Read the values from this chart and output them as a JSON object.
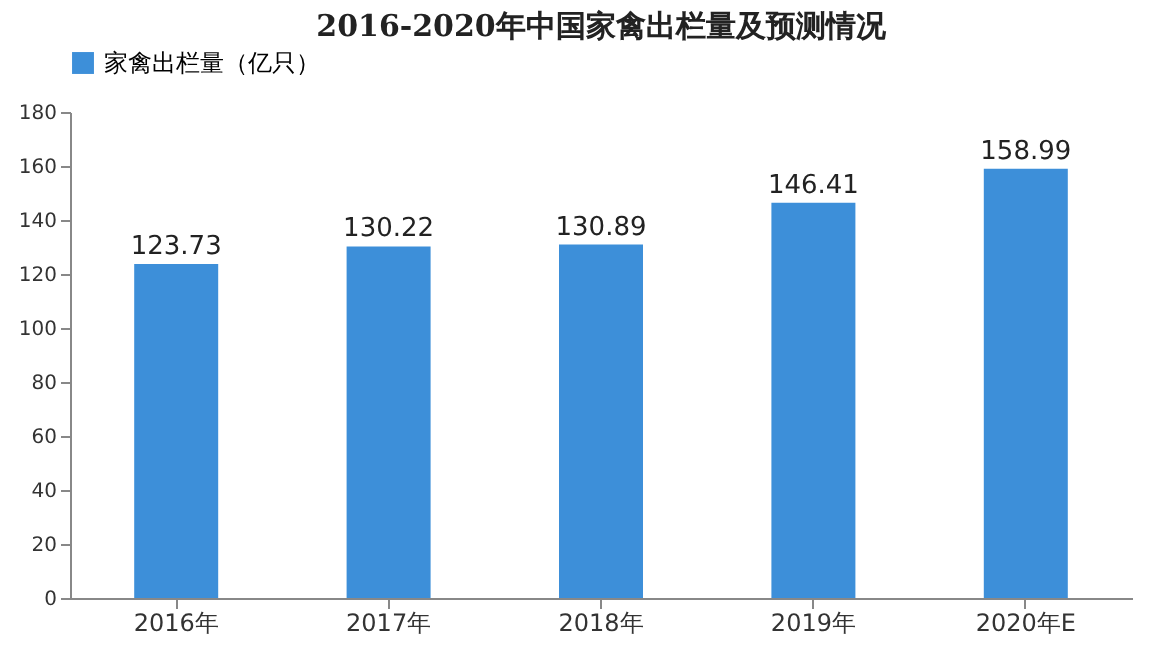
{
  "chart_data": {
    "type": "bar",
    "title": "2016-2020年中国家禽出栏量及预测情况",
    "categories": [
      "2016年",
      "2017年",
      "2018年",
      "2019年",
      "2020年E"
    ],
    "series": [
      {
        "name": "家禽出栏量（亿只）",
        "color": "#3d8fd9",
        "values": [
          123.73,
          130.22,
          130.89,
          146.41,
          158.99
        ]
      }
    ],
    "ylim": [
      0,
      180
    ],
    "yticks": [
      0,
      20,
      40,
      60,
      80,
      100,
      120,
      140,
      160,
      180
    ],
    "grid": false,
    "legend": "top",
    "data_labels": true
  }
}
